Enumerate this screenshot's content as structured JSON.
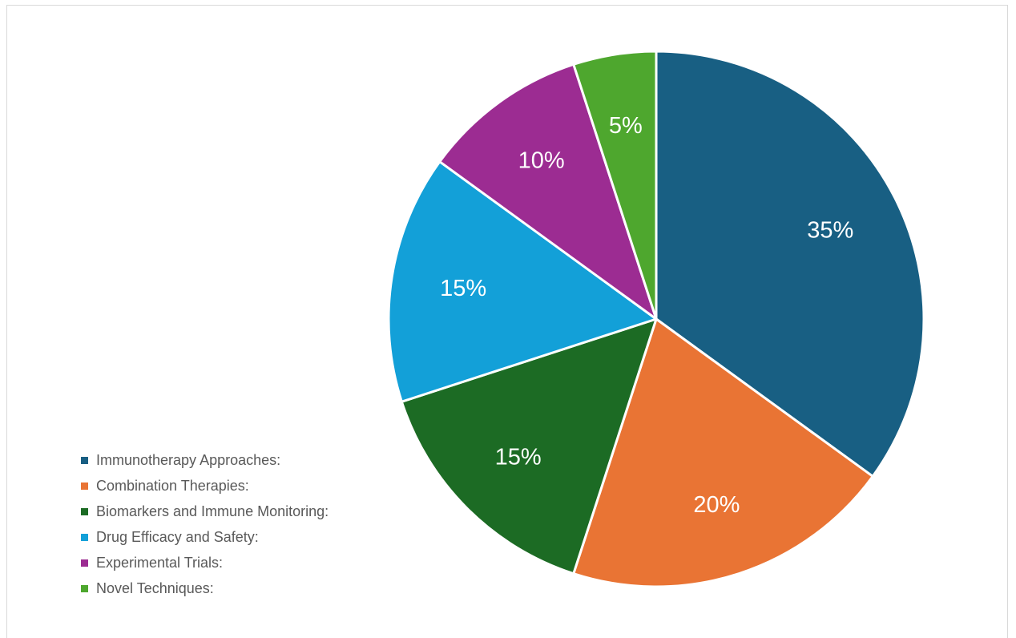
{
  "chart_data": {
    "type": "pie",
    "title": "",
    "categories": [
      "Immunotherapy Approaches:",
      "Combination Therapies:",
      "Biomarkers and Immune Monitoring:",
      "Drug Efficacy and Safety:",
      "Experimental Trials:",
      "Novel Techniques:"
    ],
    "values": [
      35,
      20,
      15,
      15,
      10,
      5
    ],
    "data_labels": [
      "35%",
      "20%",
      "15%",
      "15%",
      "10%",
      "5%"
    ],
    "colors": [
      "#185f83",
      "#e97434",
      "#1c6b24",
      "#13a0d8",
      "#9c2c92",
      "#4ea72e"
    ],
    "legend_position": "left-bottom",
    "start_angle_deg": 0,
    "direction": "clockwise"
  }
}
